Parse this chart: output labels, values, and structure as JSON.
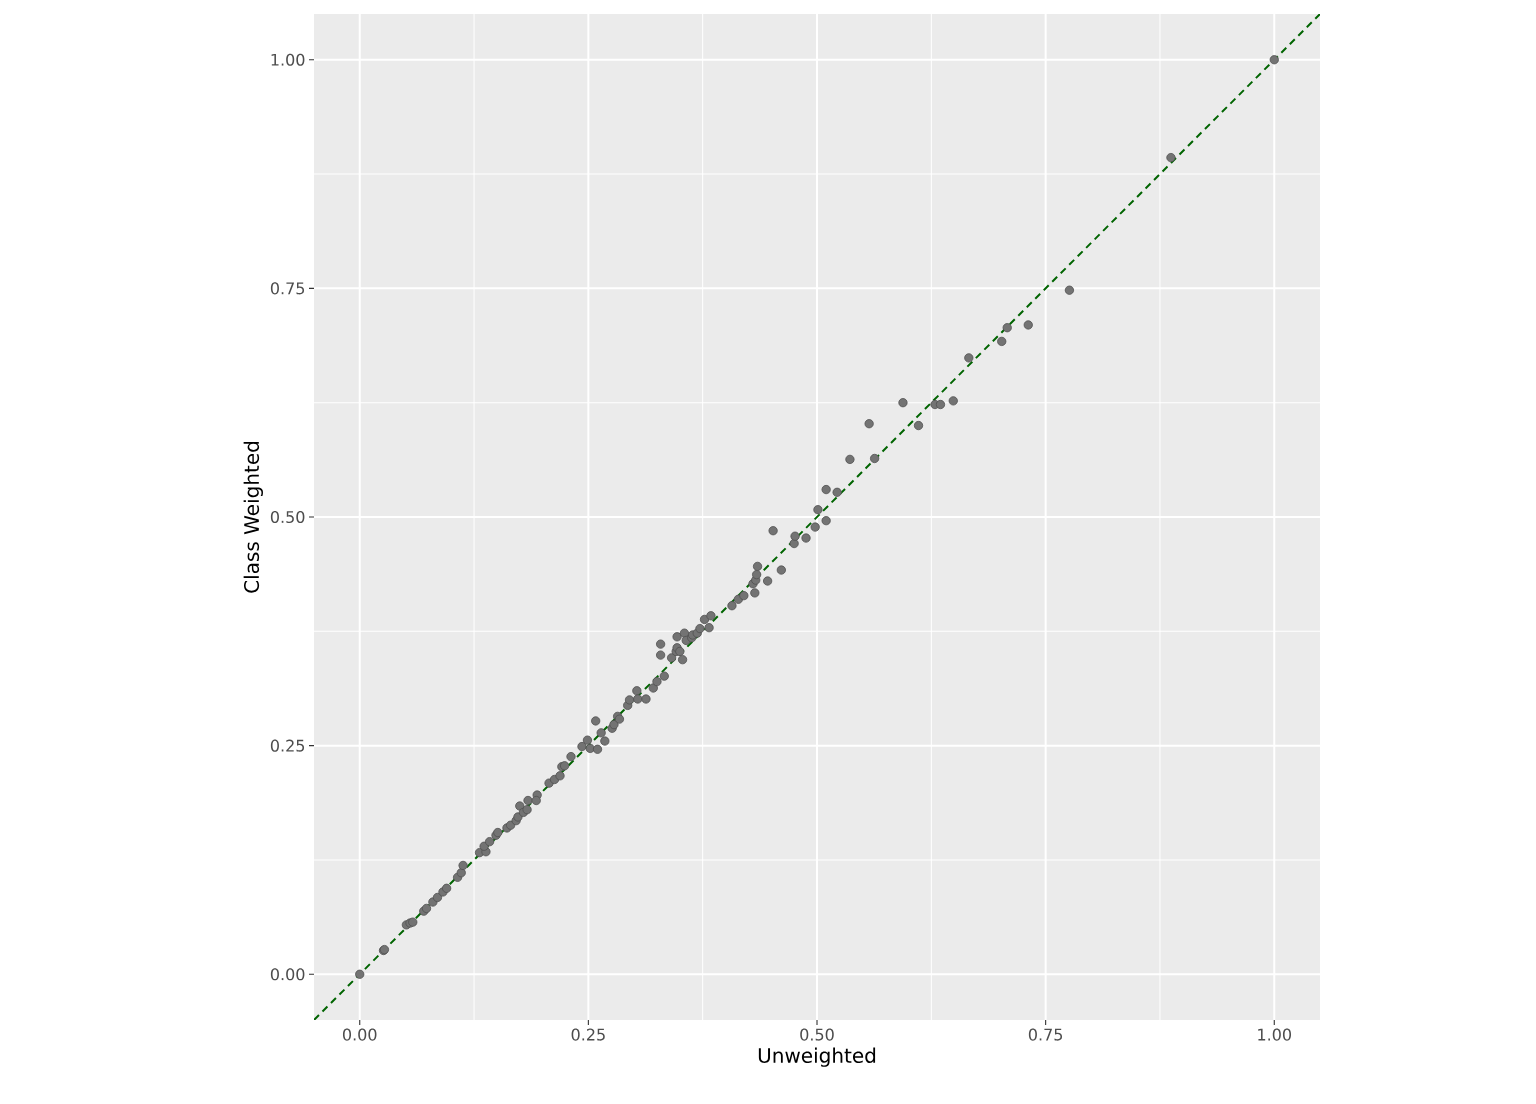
{
  "chart_data": {
    "type": "scatter",
    "xlabel": "Unweighted",
    "ylabel": "Class Weighted",
    "xlim": [
      -0.05,
      1.05
    ],
    "ylim": [
      -0.05,
      1.05
    ],
    "xticks": [
      {
        "value": 0,
        "label": "0.00"
      },
      {
        "value": 0.25,
        "label": "0.25"
      },
      {
        "value": 0.5,
        "label": "0.50"
      },
      {
        "value": 0.75,
        "label": "0.75"
      },
      {
        "value": 1,
        "label": "1.00"
      }
    ],
    "yticks": [
      {
        "value": 0,
        "label": "0.00"
      },
      {
        "value": 0.25,
        "label": "0.25"
      },
      {
        "value": 0.5,
        "label": "0.50"
      },
      {
        "value": 0.75,
        "label": "0.75"
      },
      {
        "value": 1,
        "label": "1.00"
      }
    ],
    "grid": true,
    "series": [
      {
        "marker": "circle",
        "color": "#737373",
        "x": [
          0,
          0.026,
          0.027,
          0.051,
          0.055,
          0.058,
          0.07,
          0.073,
          0.08,
          0.085,
          0.091,
          0.095,
          0.107,
          0.111,
          0.113,
          0.131,
          0.138,
          0.136,
          0.142,
          0.149,
          0.151,
          0.161,
          0.165,
          0.171,
          0.173,
          0.175,
          0.179,
          0.184,
          0.183,
          0.194,
          0.193,
          0.207,
          0.213,
          0.219,
          0.221,
          0.224,
          0.231,
          0.243,
          0.249,
          0.252,
          0.258,
          0.26,
          0.264,
          0.268,
          0.276,
          0.278,
          0.282,
          0.284,
          0.293,
          0.295,
          0.303,
          0.304,
          0.313,
          0.321,
          0.325,
          0.329,
          0.329,
          0.333,
          0.341,
          0.346,
          0.347,
          0.35,
          0.353,
          0.347,
          0.355,
          0.357,
          0.363,
          0.364,
          0.369,
          0.372,
          0.377,
          0.382,
          0.384,
          0.407,
          0.414,
          0.42,
          0.43,
          0.433,
          0.434,
          0.435,
          0.432,
          0.446,
          0.452,
          0.461,
          0.475,
          0.476,
          0.488,
          0.498,
          0.501,
          0.51,
          0.51,
          0.522,
          0.536,
          0.557,
          0.563,
          0.594,
          0.611,
          0.629,
          0.635,
          0.649,
          0.666,
          0.702,
          0.708,
          0.731,
          0.776,
          0.887,
          1
        ],
        "values": [
          0,
          0.026,
          0.027,
          0.054,
          0.056,
          0.057,
          0.069,
          0.072,
          0.079,
          0.084,
          0.09,
          0.094,
          0.106,
          0.111,
          0.119,
          0.133,
          0.134,
          0.14,
          0.145,
          0.152,
          0.155,
          0.16,
          0.163,
          0.168,
          0.172,
          0.184,
          0.177,
          0.19,
          0.18,
          0.196,
          0.19,
          0.209,
          0.213,
          0.217,
          0.227,
          0.228,
          0.238,
          0.249,
          0.256,
          0.247,
          0.277,
          0.246,
          0.264,
          0.255,
          0.269,
          0.273,
          0.282,
          0.279,
          0.294,
          0.3,
          0.31,
          0.301,
          0.301,
          0.313,
          0.32,
          0.349,
          0.361,
          0.326,
          0.346,
          0.353,
          0.357,
          0.353,
          0.344,
          0.369,
          0.373,
          0.365,
          0.368,
          0.371,
          0.373,
          0.378,
          0.388,
          0.379,
          0.392,
          0.403,
          0.41,
          0.414,
          0.427,
          0.431,
          0.437,
          0.446,
          0.417,
          0.43,
          0.485,
          0.442,
          0.471,
          0.479,
          0.477,
          0.489,
          0.508,
          0.496,
          0.53,
          0.527,
          0.563,
          0.602,
          0.564,
          0.625,
          0.6,
          0.623,
          0.623,
          0.627,
          0.674,
          0.692,
          0.707,
          0.71,
          0.748,
          0.893,
          1
        ]
      },
      {
        "type": "line",
        "marker": "none",
        "line_style": "dashed",
        "color": "#006400",
        "x": [
          -0.05,
          1.05
        ],
        "values": [
          -0.05,
          1.05
        ]
      }
    ]
  }
}
